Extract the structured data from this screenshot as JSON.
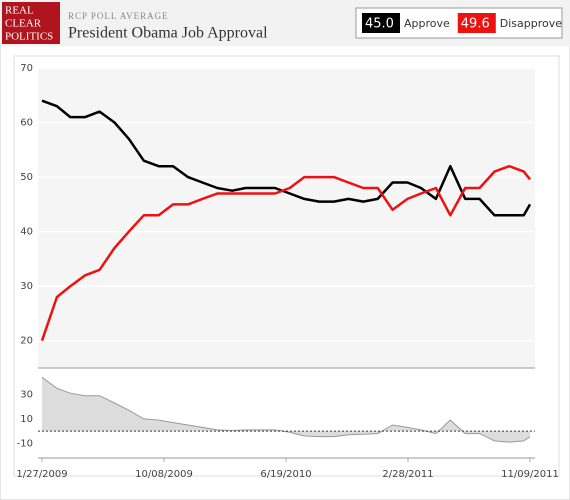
{
  "header": {
    "logo": [
      "REAL",
      "CLEAR",
      "POLITICS"
    ],
    "kicker": "RCP POLL AVERAGE",
    "title": "President Obama Job Approval",
    "legend": [
      {
        "value": "45.0",
        "label": "Approve",
        "color": "#000000"
      },
      {
        "value": "49.6",
        "label": "Disapprove",
        "color": "#ee1111"
      }
    ]
  },
  "chart_data": [
    {
      "type": "line",
      "x": [
        "1/27/2009",
        "2/27/2009",
        "3/27/2009",
        "4/27/2009",
        "5/27/2009",
        "6/27/2009",
        "7/27/2009",
        "8/27/2009",
        "9/27/2009",
        "10/27/2009",
        "11/27/2009",
        "12/27/2009",
        "1/27/2010",
        "2/27/2010",
        "3/27/2010",
        "4/27/2010",
        "5/27/2010",
        "6/27/2010",
        "7/27/2010",
        "8/27/2010",
        "9/27/2010",
        "10/27/2010",
        "11/27/2010",
        "12/27/2010",
        "1/27/2011",
        "2/27/2011",
        "3/27/2011",
        "4/27/2011",
        "5/27/2011",
        "6/27/2011",
        "7/27/2011",
        "8/27/2011",
        "9/27/2011",
        "10/27/2011",
        "11/09/2011"
      ],
      "series": [
        {
          "name": "Approve",
          "color": "#000000",
          "values": [
            64,
            63,
            61,
            61,
            62,
            60,
            57,
            53,
            52,
            52,
            50,
            49,
            48,
            47.5,
            48,
            48,
            48,
            47,
            46,
            45.5,
            45.5,
            46,
            45.5,
            46,
            49,
            49,
            48,
            46,
            52,
            46,
            46,
            43,
            43,
            43,
            45.0
          ]
        },
        {
          "name": "Disapprove",
          "color": "#ee1111",
          "values": [
            20,
            28,
            30,
            32,
            33,
            37,
            40,
            43,
            43,
            45,
            45,
            46,
            47,
            47,
            47,
            47,
            47,
            48,
            50,
            50,
            50,
            49,
            48,
            48,
            44,
            46,
            47,
            48,
            43,
            48,
            48,
            51,
            52,
            51,
            49.6
          ]
        }
      ],
      "xlim": [
        "1/27/2009",
        "11/09/2011"
      ],
      "ylim": [
        15,
        70
      ],
      "yticks": [
        20,
        30,
        40,
        50,
        60,
        70
      ],
      "grid": true
    },
    {
      "type": "area",
      "x": [
        "1/27/2009",
        "2/27/2009",
        "3/27/2009",
        "4/27/2009",
        "5/27/2009",
        "6/27/2009",
        "7/27/2009",
        "8/27/2009",
        "9/27/2009",
        "10/27/2009",
        "11/27/2009",
        "12/27/2009",
        "1/27/2010",
        "2/27/2010",
        "3/27/2010",
        "4/27/2010",
        "5/27/2010",
        "6/27/2010",
        "7/27/2010",
        "8/27/2010",
        "9/27/2010",
        "10/27/2010",
        "11/27/2010",
        "12/27/2010",
        "1/27/2011",
        "2/27/2011",
        "3/27/2011",
        "4/27/2011",
        "5/27/2011",
        "6/27/2011",
        "7/27/2011",
        "8/27/2011",
        "9/27/2011",
        "10/27/2011",
        "11/09/2011"
      ],
      "values": [
        44,
        35,
        31,
        29,
        29,
        23,
        17,
        10,
        9,
        7,
        5,
        3,
        1,
        0.5,
        1,
        1,
        1,
        -1,
        -4,
        -4.5,
        -4.5,
        -3,
        -2.5,
        -2,
        5,
        3,
        1,
        -2,
        9,
        -2,
        -2,
        -8,
        -9,
        -8,
        -4.6
      ],
      "color": "#999999",
      "xlim": [
        "1/27/2009",
        "11/09/2011"
      ],
      "ylim": [
        -22,
        50
      ],
      "yticks": [
        -10,
        10,
        30
      ],
      "xticks": [
        "1/27/2009",
        "10/08/2009",
        "6/19/2010",
        "2/28/2011",
        "11/09/2011"
      ]
    }
  ]
}
